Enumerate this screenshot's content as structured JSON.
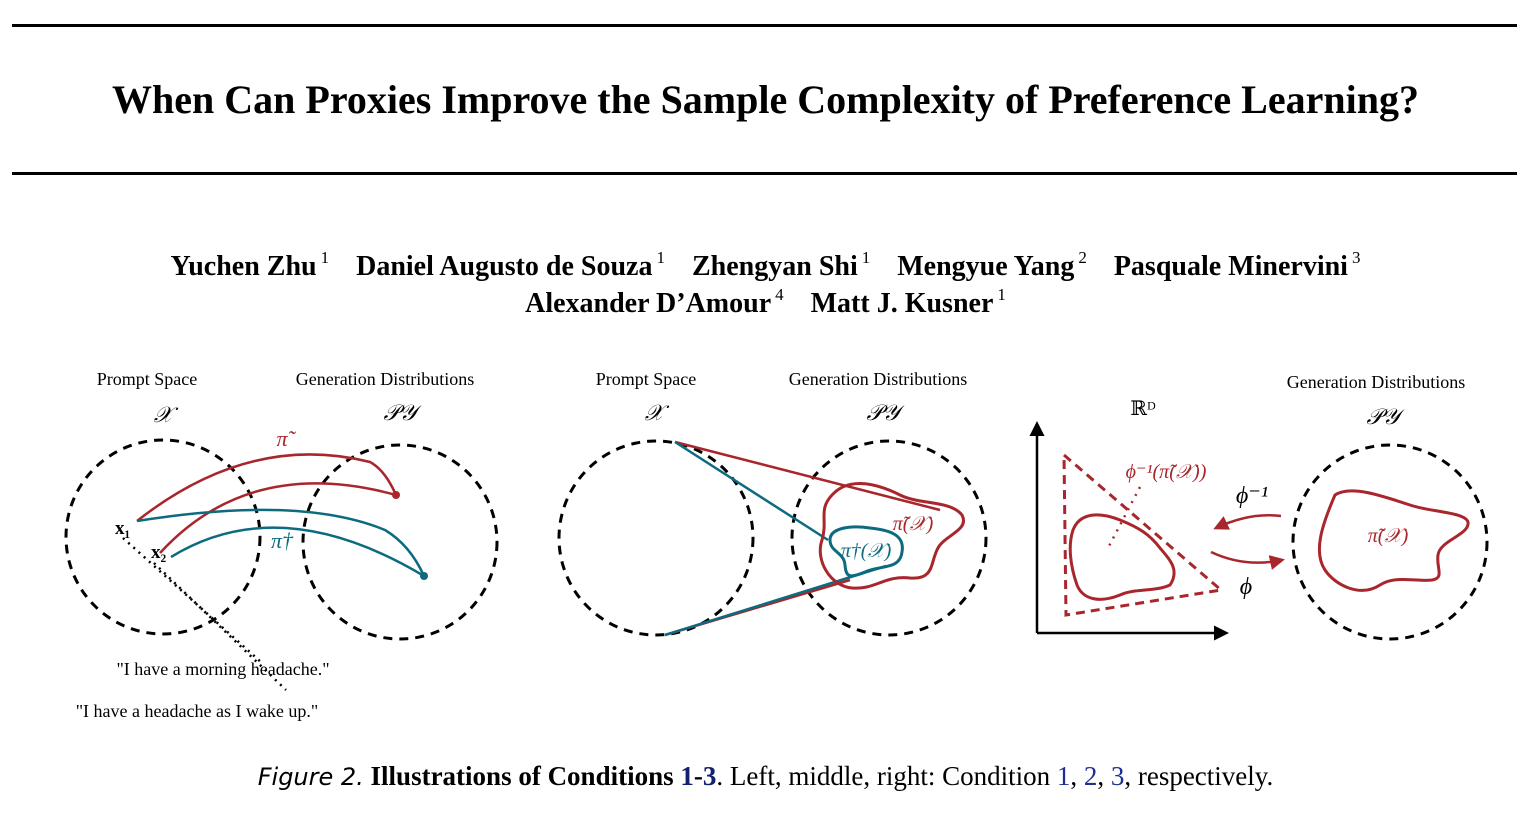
{
  "paper": {
    "title": "When Can Proxies Improve the Sample Complexity of Preference Learning?",
    "authors_line_1": [
      {
        "name": "Yuchen Zhu",
        "affiliation": "1"
      },
      {
        "name": "Daniel Augusto de Souza",
        "affiliation": "1"
      },
      {
        "name": "Zhengyan Shi",
        "affiliation": "1"
      },
      {
        "name": "Mengyue Yang",
        "affiliation": "2"
      },
      {
        "name": "Pasquale Minervini",
        "affiliation": "3"
      }
    ],
    "authors_line_2": [
      {
        "name": "Alexander D’Amour",
        "affiliation": "4"
      },
      {
        "name": "Matt J. Kusner",
        "affiliation": "1"
      }
    ]
  },
  "figure": {
    "left": {
      "prompt_space_label": "Prompt Space",
      "generation_label": "Generation Distributions",
      "prompt_symbol": "𝒳",
      "generation_symbol": "𝒫𝒴",
      "pi_tilde": "π̃",
      "pi_dagger": "π†",
      "x1": "x₁",
      "x2": "x₂",
      "example_1": "\"I have a morning headache.\"",
      "example_2": "\"I have a headache as I wake up.\""
    },
    "middle": {
      "prompt_space_label": "Prompt Space",
      "generation_label": "Generation Distributions",
      "prompt_symbol": "𝒳",
      "generation_symbol": "𝒫𝒴",
      "pi_tilde_X": "π̃(𝒳)",
      "pi_dagger_X": "π†(𝒳)"
    },
    "right": {
      "space_label": "ℝᴰ",
      "generation_label": "Generation Distributions",
      "generation_symbol": "𝒫𝒴",
      "phi_inverse_label": "ϕ⁻¹(π̃(𝒳))",
      "phi_inverse": "ϕ⁻¹",
      "phi": "ϕ",
      "pi_tilde_X": "π̃(𝒳)"
    },
    "colors": {
      "red": "#a8262c",
      "teal": "#0d6b80"
    }
  },
  "caption": {
    "label": "Figure 2.",
    "bold_text": "Illustrations of Conditions",
    "ref_range_start": "1",
    "ref_range_dash": "-",
    "ref_range_end": "3",
    "text_after": ". Left, middle, right: Condition",
    "ref_1": "1",
    "ref_2": "2",
    "ref_3": "3",
    "tail": ", respectively."
  }
}
